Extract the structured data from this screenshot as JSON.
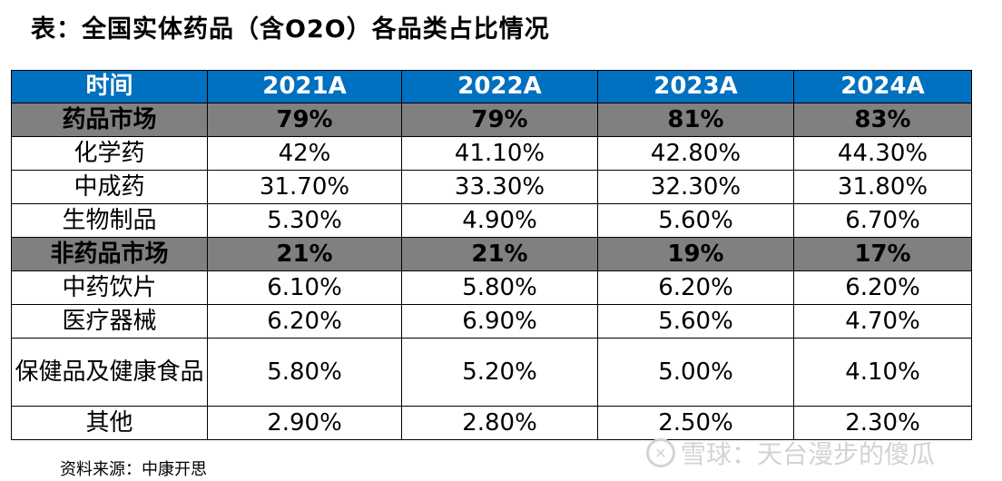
{
  "title": "表：全国实体药品（含O2O）各品类占比情况",
  "table": {
    "header": [
      "时间",
      "2021A",
      "2022A",
      "2023A",
      "2024A"
    ],
    "rows": [
      [
        "药品市场",
        "79%",
        "79%",
        "81%",
        "83%"
      ],
      [
        "化学药",
        "42%",
        "41.10%",
        "42.80%",
        "44.30%"
      ],
      [
        "中成药",
        "31.70%",
        "33.30%",
        "32.30%",
        "31.80%"
      ],
      [
        "生物制品",
        "5.30%",
        "4.90%",
        "5.60%",
        "6.70%"
      ],
      [
        "非药品市场",
        "21%",
        "21%",
        "19%",
        "17%"
      ],
      [
        "中药饮片",
        "6.10%",
        "5.80%",
        "6.20%",
        "6.20%"
      ],
      [
        "医疗器械",
        "6.20%",
        "6.90%",
        "5.60%",
        "4.70%"
      ],
      [
        "保健品及健康食品",
        "5.80%",
        "5.20%",
        "5.00%",
        "4.10%"
      ],
      [
        "其他",
        "2.90%",
        "2.80%",
        "2.50%",
        "2.30%"
      ]
    ]
  },
  "source": "资料来源：中康开思",
  "watermark": {
    "icon": "snowball-logo",
    "text": "雪球：天台漫步的傻瓜"
  },
  "colors": {
    "header_bg": "#0070c0",
    "header_text": "#ffffff",
    "group_bg": "#808080"
  }
}
